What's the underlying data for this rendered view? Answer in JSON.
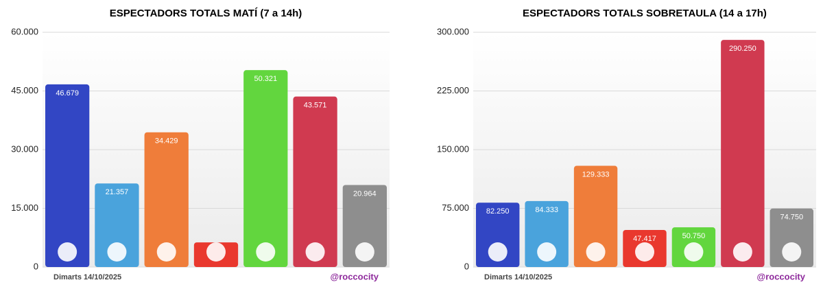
{
  "chart_data": [
    {
      "type": "bar",
      "title": "ESPECTADORS TOTALS MATÍ (7 a 14h)",
      "values": [
        46679,
        21357,
        34429,
        6300,
        50321,
        43571,
        20964
      ],
      "value_labels": [
        "46.679",
        "21.357",
        "34.429",
        null,
        "50.321",
        "43.571",
        "20.964"
      ],
      "colors": [
        "#3246c4",
        "#4aa3dc",
        "#ef7d3a",
        "#e9382e",
        "#62d63e",
        "#d03a50",
        "#8e8e8e"
      ],
      "ylim": [
        0,
        60000
      ],
      "yticks": [
        0,
        {
          "value": 15000,
          "label": "15.000"
        },
        {
          "value": 30000,
          "label": "30.000"
        },
        {
          "value": 45000,
          "label": "45.000"
        },
        {
          "value": 60000,
          "label": "60.000"
        }
      ],
      "grid": true,
      "date": "Dimarts 14/10/2025",
      "credit": "@roccocity"
    },
    {
      "type": "bar",
      "title": "ESPECTADORS TOTALS SOBRETAULA (14 a 17h)",
      "values": [
        82250,
        84333,
        129333,
        47417,
        50750,
        290250,
        74750
      ],
      "value_labels": [
        "82.250",
        "84.333",
        "129.333",
        "47.417",
        "50.750",
        "290.250",
        "74.750"
      ],
      "colors": [
        "#3246c4",
        "#4aa3dc",
        "#ef7d3a",
        "#e9382e",
        "#62d63e",
        "#d03a50",
        "#8e8e8e"
      ],
      "ylim": [
        0,
        300000
      ],
      "yticks": [
        0,
        {
          "value": 75000,
          "label": "75.000"
        },
        {
          "value": 150000,
          "label": "150.000"
        },
        {
          "value": 225000,
          "label": "225.000"
        },
        {
          "value": 300000,
          "label": "300.000"
        }
      ],
      "grid": true,
      "date": "Dimarts 14/10/2025",
      "credit": "@roccocity"
    }
  ]
}
